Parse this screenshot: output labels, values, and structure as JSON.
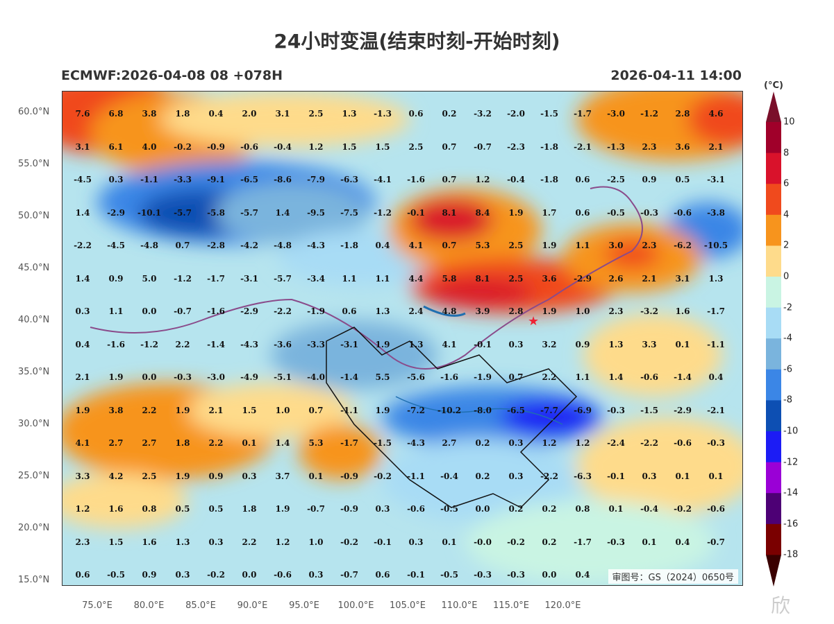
{
  "header": {
    "title": "24小时变温(结束时刻-开始时刻)",
    "model_run": "ECMWF:2026-04-08 08 +078H",
    "valid_time": "2026-04-11 14:00"
  },
  "map": {
    "review_number": "审图号：GS（2024）0650号",
    "lat_labels": [
      "60.0°N",
      "55.0°N",
      "50.0°N",
      "45.0°N",
      "40.0°N",
      "35.0°N",
      "30.0°N",
      "25.0°N",
      "20.0°N",
      "15.0°N"
    ],
    "lon_labels": [
      "75.0°E",
      "80.0°E",
      "85.0°E",
      "90.0°E",
      "95.0°E",
      "100.0°E",
      "105.0°E",
      "110.0°E",
      "115.0°E",
      "120.0°E"
    ],
    "grid_values": [
      [
        "7.6",
        "6.8",
        "3.8",
        "1.8",
        "0.4",
        "2.0",
        "3.1",
        "2.5",
        "1.3",
        "-1.3",
        "0.6",
        "0.2",
        "-3.2",
        "-2.0",
        "-1.5",
        "-1.7",
        "-3.0",
        "-1.2",
        "2.8",
        "4.6"
      ],
      [
        "3.1",
        "6.1",
        "4.0",
        "-0.2",
        "-0.9",
        "-0.6",
        "-0.4",
        "1.2",
        "1.5",
        "1.5",
        "2.5",
        "0.7",
        "-0.7",
        "-2.3",
        "-1.8",
        "-2.1",
        "-1.3",
        "2.3",
        "3.6",
        "2.1"
      ],
      [
        "-4.5",
        "0.3",
        "-1.1",
        "-3.3",
        "-9.1",
        "-6.5",
        "-8.6",
        "-7.9",
        "-6.3",
        "-4.1",
        "-1.6",
        "0.7",
        "1.2",
        "-0.4",
        "-1.8",
        "0.6",
        "-2.5",
        "0.9",
        "0.5",
        "-3.1"
      ],
      [
        "1.4",
        "-2.9",
        "-10.1",
        "-5.7",
        "-5.8",
        "-5.7",
        "1.4",
        "-9.5",
        "-7.5",
        "-1.2",
        "-0.1",
        "8.1",
        "8.4",
        "1.9",
        "1.7",
        "0.6",
        "-0.5",
        "-0.3",
        "-0.6",
        "-3.8"
      ],
      [
        "-2.2",
        "-4.5",
        "-4.8",
        "0.7",
        "-2.8",
        "-4.2",
        "-4.8",
        "-4.3",
        "-1.8",
        "0.4",
        "4.1",
        "0.7",
        "5.3",
        "2.5",
        "1.9",
        "1.1",
        "3.0",
        "2.3",
        "-6.2",
        "-10.5"
      ],
      [
        "1.4",
        "0.9",
        "5.0",
        "-1.2",
        "-1.7",
        "-3.1",
        "-5.7",
        "-3.4",
        "1.1",
        "1.1",
        "4.4",
        "5.8",
        "8.1",
        "2.5",
        "3.6",
        "-2.9",
        "2.6",
        "2.1",
        "3.1",
        "1.3"
      ],
      [
        "0.3",
        "1.1",
        "0.0",
        "-0.7",
        "-1.6",
        "-2.9",
        "-2.2",
        "-1.9",
        "0.6",
        "1.3",
        "2.4",
        "4.8",
        "3.9",
        "2.8",
        "1.9",
        "1.0",
        "2.3",
        "-3.2",
        "1.6",
        "-1.7"
      ],
      [
        "0.4",
        "-1.6",
        "-1.2",
        "2.2",
        "-1.4",
        "-4.3",
        "-3.6",
        "-3.3",
        "-3.1",
        "1.9",
        "1.3",
        "4.1",
        "-0.1",
        "0.3",
        "3.2",
        "0.9",
        "1.3",
        "3.3",
        "0.1",
        "-1.1"
      ],
      [
        "2.1",
        "1.9",
        "0.0",
        "-0.3",
        "-3.0",
        "-4.9",
        "-5.1",
        "-4.0",
        "-1.4",
        "5.5",
        "-5.6",
        "-1.6",
        "-1.9",
        "0.7",
        "2.2",
        "1.1",
        "1.4",
        "-0.6",
        "-1.4",
        "0.4"
      ],
      [
        "1.9",
        "3.8",
        "2.2",
        "1.9",
        "2.1",
        "1.5",
        "1.0",
        "0.7",
        "-1.1",
        "1.9",
        "-7.2",
        "-10.2",
        "-8.0",
        "-6.5",
        "-7.7",
        "-6.9",
        "-0.3",
        "-1.5",
        "-2.9",
        "-2.1"
      ],
      [
        "4.1",
        "2.7",
        "2.7",
        "1.8",
        "2.2",
        "0.1",
        "1.4",
        "5.3",
        "-1.7",
        "-1.5",
        "-4.3",
        "2.7",
        "0.2",
        "0.3",
        "1.2",
        "1.2",
        "-2.4",
        "-2.2",
        "-0.6",
        "-0.3"
      ],
      [
        "3.3",
        "4.2",
        "2.5",
        "1.9",
        "0.9",
        "0.3",
        "3.7",
        "0.1",
        "-0.9",
        "-0.2",
        "-1.1",
        "-0.4",
        "0.2",
        "0.3",
        "-2.2",
        "-6.3",
        "-0.1",
        "0.3",
        "0.1",
        "0.1"
      ],
      [
        "1.2",
        "1.6",
        "0.8",
        "0.5",
        "0.5",
        "1.8",
        "1.9",
        "-0.7",
        "-0.9",
        "0.3",
        "-0.6",
        "-0.5",
        "0.0",
        "0.2",
        "0.2",
        "0.8",
        "0.1",
        "-0.4",
        "-0.2",
        "-0.6"
      ],
      [
        "2.3",
        "1.5",
        "1.6",
        "1.3",
        "0.3",
        "2.2",
        "1.2",
        "1.0",
        "-0.2",
        "-0.1",
        "0.3",
        "0.1",
        "-0.0",
        "-0.2",
        "0.2",
        "-1.7",
        "-0.3",
        "0.1",
        "0.4",
        "-0.7"
      ],
      [
        "0.6",
        "-0.5",
        "0.9",
        "0.3",
        "-0.2",
        "0.0",
        "-0.6",
        "0.3",
        "-0.7",
        "0.6",
        "-0.1",
        "-0.5",
        "-0.3",
        "-0.3",
        "0.0",
        "0.4",
        "",
        "",
        "",
        ""
      ]
    ]
  },
  "colorbar": {
    "unit": "(°C)",
    "labels": [
      "10",
      "8",
      "6",
      "4",
      "2",
      "0",
      "-2",
      "-4",
      "-6",
      "-8",
      "-10",
      "-12",
      "-14",
      "-16",
      "-18"
    ],
    "colors": [
      "#a0002a",
      "#d9122b",
      "#f04a1d",
      "#f7941d",
      "#fedb8b",
      "#c9f4e3",
      "#a8dcf5",
      "#7ab4dd",
      "#3b86e6",
      "#0d4fb3",
      "#1c1cf5",
      "#9a00d6",
      "#4d0075",
      "#7a0000"
    ]
  },
  "watermark": "欣"
}
